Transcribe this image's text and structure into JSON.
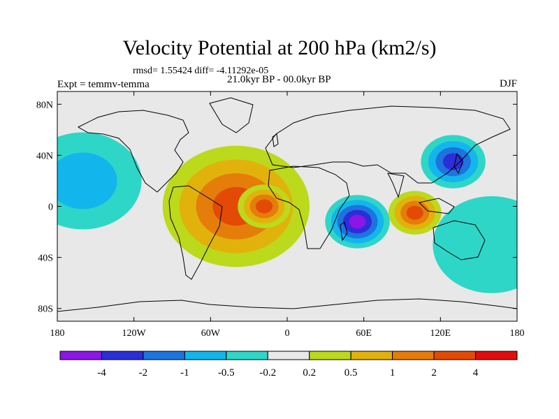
{
  "title": "Velocity Potential at 200 hPa (km2/s)",
  "stats": "rmsd= 1.55424 diff= -4.11292e-05",
  "subtitle": "21.0kyr BP - 00.0kyr BP",
  "experiment": "Expt = temmv-temma",
  "season": "DJF",
  "map": {
    "lon_range": [
      -180,
      180
    ],
    "lat_range": [
      -90,
      90
    ],
    "lon_ticks": [
      {
        "lon": -180,
        "label": "180"
      },
      {
        "lon": -120,
        "label": "120W"
      },
      {
        "lon": -60,
        "label": "60W"
      },
      {
        "lon": 0,
        "label": "0"
      },
      {
        "lon": 60,
        "label": "60E"
      },
      {
        "lon": 120,
        "label": "120E"
      },
      {
        "lon": 180,
        "label": "180"
      }
    ],
    "lat_ticks": [
      {
        "lat": 80,
        "label": "80N"
      },
      {
        "lat": 40,
        "label": "40N"
      },
      {
        "lat": 0,
        "label": "0"
      },
      {
        "lat": -40,
        "label": "40S"
      },
      {
        "lat": -80,
        "label": "80S"
      }
    ],
    "background_color": "#e8e8e8"
  },
  "colorbar": {
    "colors": [
      "#8b16e6",
      "#2c2ed8",
      "#1d74de",
      "#13b6ec",
      "#2ed6c8",
      "#e8e8e8",
      "#bcd91b",
      "#e1b20c",
      "#e47d0a",
      "#e24a06",
      "#e20c0c"
    ],
    "labels": [
      "-4",
      "-2",
      "-1",
      "-0.5",
      "-0.2",
      "0.2",
      "0.5",
      "1",
      "2",
      "4"
    ]
  },
  "contour_centers": [
    {
      "lon": -40,
      "lat": 0,
      "value": 2.5,
      "spread": 50
    },
    {
      "lon": -18,
      "lat": 0,
      "value": 3,
      "spread": 18
    },
    {
      "lon": 55,
      "lat": -12,
      "value": -4,
      "spread": 22
    },
    {
      "lon": 100,
      "lat": -5,
      "value": 2,
      "spread": 18
    },
    {
      "lon": 130,
      "lat": 35,
      "value": -2,
      "spread": 22
    },
    {
      "lon": -160,
      "lat": 20,
      "value": -0.8,
      "spread": 40
    },
    {
      "lon": 160,
      "lat": -30,
      "value": -0.4,
      "spread": 40
    }
  ]
}
